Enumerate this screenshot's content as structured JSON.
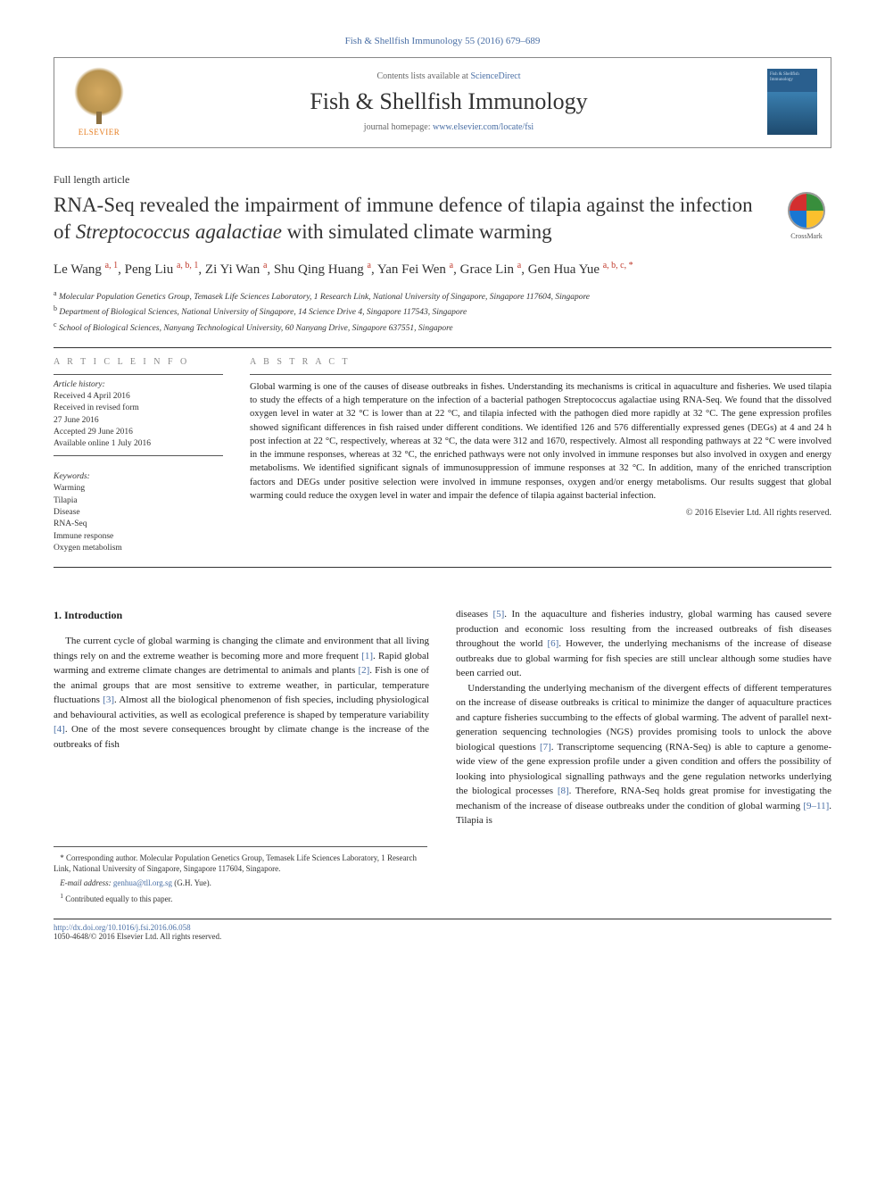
{
  "journal_ref": "Fish & Shellfish Immunology 55 (2016) 679–689",
  "header": {
    "contents_prefix": "Contents lists available at ",
    "contents_link": "ScienceDirect",
    "journal_name": "Fish & Shellfish Immunology",
    "homepage_prefix": "journal homepage: ",
    "homepage_link": "www.elsevier.com/locate/fsi",
    "elsevier_label": "ELSEVIER",
    "cover_text": "Fish & Shellfish Immunology"
  },
  "article_type": "Full length article",
  "title_parts": {
    "before_em": "RNA-Seq revealed the impairment of immune defence of tilapia against the infection of ",
    "em": "Streptococcus agalactiae",
    "after_em": " with simulated climate warming"
  },
  "crossmark_label": "CrossMark",
  "authors_html": "Le Wang <sup>a, 1</sup>, Peng Liu <sup>a, b, 1</sup>, Zi Yi Wan <sup>a</sup>, Shu Qing Huang <sup>a</sup>, Yan Fei Wen <sup>a</sup>, Grace Lin <sup>a</sup>, Gen Hua Yue <sup>a, b, c, *</sup>",
  "affiliations": [
    {
      "sup": "a",
      "text": "Molecular Population Genetics Group, Temasek Life Sciences Laboratory, 1 Research Link, National University of Singapore, Singapore 117604, Singapore"
    },
    {
      "sup": "b",
      "text": "Department of Biological Sciences, National University of Singapore, 14 Science Drive 4, Singapore 117543, Singapore"
    },
    {
      "sup": "c",
      "text": "School of Biological Sciences, Nanyang Technological University, 60 Nanyang Drive, Singapore 637551, Singapore"
    }
  ],
  "info_heading": "A R T I C L E   I N F O",
  "abstract_heading": "A B S T R A C T",
  "history": {
    "label": "Article history:",
    "items": [
      "Received 4 April 2016",
      "Received in revised form",
      "27 June 2016",
      "Accepted 29 June 2016",
      "Available online 1 July 2016"
    ]
  },
  "keywords": {
    "label": "Keywords:",
    "items": [
      "Warming",
      "Tilapia",
      "Disease",
      "RNA-Seq",
      "Immune response",
      "Oxygen metabolism"
    ]
  },
  "abstract_text": "Global warming is one of the causes of disease outbreaks in fishes. Understanding its mechanisms is critical in aquaculture and fisheries. We used tilapia to study the effects of a high temperature on the infection of a bacterial pathogen Streptococcus agalactiae using RNA-Seq. We found that the dissolved oxygen level in water at 32 °C is lower than at 22 °C, and tilapia infected with the pathogen died more rapidly at 32 °C. The gene expression profiles showed significant differences in fish raised under different conditions. We identified 126 and 576 differentially expressed genes (DEGs) at 4 and 24 h post infection at 22 °C, respectively, whereas at 32 °C, the data were 312 and 1670, respectively. Almost all responding pathways at 22 °C were involved in the immune responses, whereas at 32 °C, the enriched pathways were not only involved in immune responses but also involved in oxygen and energy metabolisms. We identified significant signals of immunosuppression of immune responses at 32 °C. In addition, many of the enriched transcription factors and DEGs under positive selection were involved in immune responses, oxygen and/or energy metabolisms. Our results suggest that global warming could reduce the oxygen level in water and impair the defence of tilapia against bacterial infection.",
  "copyright": "© 2016 Elsevier Ltd. All rights reserved.",
  "section1_heading": "1. Introduction",
  "body_col1": "The current cycle of global warming is changing the climate and environment that all living things rely on and the extreme weather is becoming more and more frequent [1]. Rapid global warming and extreme climate changes are detrimental to animals and plants [2]. Fish is one of the animal groups that are most sensitive to extreme weather, in particular, temperature fluctuations [3]. Almost all the biological phenomenon of fish species, including physiological and behavioural activities, as well as ecological preference is shaped by temperature variability [4]. One of the most severe consequences brought by climate change is the increase of the outbreaks of fish",
  "body_col2_p1": "diseases [5]. In the aquaculture and fisheries industry, global warming has caused severe production and economic loss resulting from the increased outbreaks of fish diseases throughout the world [6]. However, the underlying mechanisms of the increase of disease outbreaks due to global warming for fish species are still unclear although some studies have been carried out.",
  "body_col2_p2": "Understanding the underlying mechanism of the divergent effects of different temperatures on the increase of disease outbreaks is critical to minimize the danger of aquaculture practices and capture fisheries succumbing to the effects of global warming. The advent of parallel next-generation sequencing technologies (NGS) provides promising tools to unlock the above biological questions [7]. Transcriptome sequencing (RNA-Seq) is able to capture a genome-wide view of the gene expression profile under a given condition and offers the possibility of looking into physiological signalling pathways and the gene regulation networks underlying the biological processes [8]. Therefore, RNA-Seq holds great promise for investigating the mechanism of the increase of disease outbreaks under the condition of global warming [9–11]. Tilapia is",
  "footnotes": {
    "corr": "* Corresponding author. Molecular Population Genetics Group, Temasek Life Sciences Laboratory, 1 Research Link, National University of Singapore, Singapore 117604, Singapore.",
    "email_label": "E-mail address: ",
    "email": "genhua@tll.org.sg",
    "email_suffix": " (G.H. Yue).",
    "contrib": "1 Contributed equally to this paper."
  },
  "footer": {
    "doi": "http://dx.doi.org/10.1016/j.fsi.2016.06.058",
    "issn_line": "1050-4648/© 2016 Elsevier Ltd. All rights reserved."
  },
  "colors": {
    "link": "#4a6fa5",
    "sup": "#c0392b",
    "text": "#222222",
    "rule": "#333333"
  }
}
